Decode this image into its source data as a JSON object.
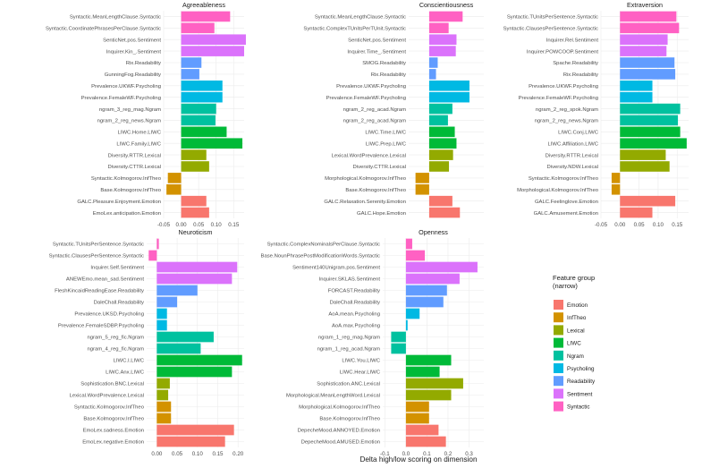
{
  "xlabel": "Delta high/low scoring on dimension",
  "legend": {
    "title": "Feature group\n(narrow)",
    "items": [
      {
        "name": "Emotion",
        "color": "#F8766D"
      },
      {
        "name": "InfTheo",
        "color": "#D39200"
      },
      {
        "name": "Lexical",
        "color": "#93AA00"
      },
      {
        "name": "LIWC",
        "color": "#00BA38"
      },
      {
        "name": "Ngram",
        "color": "#00C19F"
      },
      {
        "name": "Psycholing",
        "color": "#00B9E3"
      },
      {
        "name": "Readability",
        "color": "#619CFF"
      },
      {
        "name": "Sentiment",
        "color": "#DB72FB"
      },
      {
        "name": "Syntactic",
        "color": "#FF61C3"
      }
    ]
  },
  "chart_data": [
    {
      "type": "bar",
      "orientation": "horizontal",
      "title": "Agreeableness",
      "xlim": [
        -0.05,
        0.18
      ],
      "xticks": [
        "-0.05",
        "0.00",
        "0.05",
        "0.10",
        "0.15"
      ],
      "xtick_values": [
        -0.05,
        0.0,
        0.05,
        0.1,
        0.15
      ],
      "bars": [
        {
          "label": "Syntactic.MeanLengthClause.Syntactic",
          "value": 0.14,
          "group": "Syntactic"
        },
        {
          "label": "Syntactic.CoordinatePhrasesPerClause.Syntactic",
          "value": 0.095,
          "group": "Syntactic"
        },
        {
          "label": "SenticNet.pos.Sentiment",
          "value": 0.185,
          "group": "Sentiment"
        },
        {
          "label": "Inquirer.Kin_.Sentiment",
          "value": 0.18,
          "group": "Sentiment"
        },
        {
          "label": "Rix.Readability",
          "value": 0.058,
          "group": "Readability"
        },
        {
          "label": "GunningFog.Readability",
          "value": 0.052,
          "group": "Readability"
        },
        {
          "label": "Prevalence.UKWF.Psycholing",
          "value": 0.118,
          "group": "Psycholing"
        },
        {
          "label": "Prevalence.FemaleWF.Psycholing",
          "value": 0.118,
          "group": "Psycholing"
        },
        {
          "label": "ngram_3_reg_mag.Ngram",
          "value": 0.1,
          "group": "Ngram"
        },
        {
          "label": "ngram_2_reg_news.Ngram",
          "value": 0.098,
          "group": "Ngram"
        },
        {
          "label": "LIWC.Home.LIWC",
          "value": 0.13,
          "group": "LIWC"
        },
        {
          "label": "LIWC.Family.LIWC",
          "value": 0.175,
          "group": "LIWC"
        },
        {
          "label": "Diversity.RTTR.Lexical",
          "value": 0.072,
          "group": "Lexical"
        },
        {
          "label": "Diversity.CTTR.Lexical",
          "value": 0.08,
          "group": "Lexical"
        },
        {
          "label": "Syntactic.Kolmogorov.InfTheo",
          "value": -0.038,
          "group": "InfTheo"
        },
        {
          "label": "Base.Kolmogorov.InfTheo",
          "value": -0.042,
          "group": "InfTheo"
        },
        {
          "label": "GALC.Pleasure.Enjoyment.Emotion",
          "value": 0.072,
          "group": "Emotion"
        },
        {
          "label": "EmoLex.anticipation.Emotion",
          "value": 0.08,
          "group": "Emotion"
        }
      ]
    },
    {
      "type": "bar",
      "orientation": "horizontal",
      "title": "Conscientiousness",
      "xlim": [
        -0.06,
        0.16
      ],
      "xticks": [],
      "xtick_values": [],
      "bars": [
        {
          "label": "Syntactic.MeanLengthClause.Syntactic",
          "value": 0.098,
          "group": "Syntactic"
        },
        {
          "label": "Syntactic.ComplexTUnitsPerTUnit.Syntactic",
          "value": 0.057,
          "group": "Syntactic"
        },
        {
          "label": "SenticNet.pos.Sentiment",
          "value": 0.08,
          "group": "Sentiment"
        },
        {
          "label": "Inquirer.Time_.Sentiment",
          "value": 0.078,
          "group": "Sentiment"
        },
        {
          "label": "SMOG.Readability",
          "value": 0.025,
          "group": "Readability"
        },
        {
          "label": "Rix.Readability",
          "value": 0.02,
          "group": "Readability"
        },
        {
          "label": "Prevalence.UKWF.Psycholing",
          "value": 0.118,
          "group": "Psycholing"
        },
        {
          "label": "Prevalence.FemaleWF.Psycholing",
          "value": 0.118,
          "group": "Psycholing"
        },
        {
          "label": "ngram_2_reg_acad.Ngram",
          "value": 0.068,
          "group": "Ngram"
        },
        {
          "label": "ngram_2_reg_acad.Ngram",
          "value": 0.055,
          "group": "Ngram"
        },
        {
          "label": "LIWC.Time.LIWC",
          "value": 0.075,
          "group": "LIWC"
        },
        {
          "label": "LIWC.Prep.LIWC",
          "value": 0.08,
          "group": "LIWC"
        },
        {
          "label": "Lexical.WordPrevalence.Lexical",
          "value": 0.07,
          "group": "Lexical"
        },
        {
          "label": "Diversity.CTTR.Lexical",
          "value": 0.058,
          "group": "Lexical"
        },
        {
          "label": "Morphological.Kolmogorov.InfTheo",
          "value": -0.04,
          "group": "InfTheo"
        },
        {
          "label": "Base.Kolmogorov.InfTheo",
          "value": -0.04,
          "group": "InfTheo"
        },
        {
          "label": "GALC.Relaxation.Serenity.Emotion",
          "value": 0.068,
          "group": "Emotion"
        },
        {
          "label": "GALC.Hope.Emotion",
          "value": 0.09,
          "group": "Emotion"
        }
      ]
    },
    {
      "type": "bar",
      "orientation": "horizontal",
      "title": "Extraversion",
      "xlim": [
        -0.05,
        0.18
      ],
      "xticks": [
        "-0.05",
        "0.00",
        "0.05",
        "0.10",
        "0.15"
      ],
      "xtick_values": [
        -0.05,
        0.0,
        0.05,
        0.1,
        0.15
      ],
      "bars": [
        {
          "label": "Syntactic.TUnitsPerSentence.Syntactic",
          "value": 0.148,
          "group": "Syntactic"
        },
        {
          "label": "Syntactic.ClausesPerSentence.Syntactic",
          "value": 0.155,
          "group": "Syntactic"
        },
        {
          "label": "Inquirer.Rel.Sentiment",
          "value": 0.125,
          "group": "Sentiment"
        },
        {
          "label": "Inquirer.POWCOOP.Sentiment",
          "value": 0.122,
          "group": "Sentiment"
        },
        {
          "label": "Spache.Readability",
          "value": 0.143,
          "group": "Readability"
        },
        {
          "label": "Rix.Readability",
          "value": 0.145,
          "group": "Readability"
        },
        {
          "label": "Prevalence.UKWF.Psycholing",
          "value": 0.085,
          "group": "Psycholing"
        },
        {
          "label": "Prevalence.FemaleWF.Psycholing",
          "value": 0.085,
          "group": "Psycholing"
        },
        {
          "label": "ngram_2_reg_spok.Ngram",
          "value": 0.158,
          "group": "Ngram"
        },
        {
          "label": "ngram_2_reg_news.Ngram",
          "value": 0.152,
          "group": "Ngram"
        },
        {
          "label": "LIWC.Conj.LIWC",
          "value": 0.158,
          "group": "LIWC"
        },
        {
          "label": "LIWC.Affiliation.LIWC",
          "value": 0.175,
          "group": "LIWC"
        },
        {
          "label": "Diversity.RTTR.Lexical",
          "value": 0.12,
          "group": "Lexical"
        },
        {
          "label": "Diversity.NDW.Lexical",
          "value": 0.13,
          "group": "Lexical"
        },
        {
          "label": "Syntactic.Kolmogorov.InfTheo",
          "value": -0.022,
          "group": "InfTheo"
        },
        {
          "label": "Morphological.Kolmogorov.InfTheo",
          "value": -0.022,
          "group": "InfTheo"
        },
        {
          "label": "GALC.Feelinglove.Emotion",
          "value": 0.145,
          "group": "Emotion"
        },
        {
          "label": "GALC.Amusement.Emotion",
          "value": 0.085,
          "group": "Emotion"
        }
      ]
    },
    {
      "type": "bar",
      "orientation": "horizontal",
      "title": "Neuroticism",
      "xlim": [
        -0.025,
        0.215
      ],
      "xticks": [
        "0.00",
        "0.05",
        "0.10",
        "0.15",
        "0.20"
      ],
      "xtick_values": [
        0.0,
        0.05,
        0.1,
        0.15,
        0.2
      ],
      "bars": [
        {
          "label": "Syntactic.TUnitsPerSentence.Syntactic",
          "value": 0.005,
          "group": "Syntactic"
        },
        {
          "label": "Syntactic.ClausesPerSentence.Syntactic",
          "value": -0.02,
          "group": "Syntactic"
        },
        {
          "label": "Inquirer.Self.Sentiment",
          "value": 0.198,
          "group": "Sentiment"
        },
        {
          "label": "ANEWEmo.mean_sad.Sentiment",
          "value": 0.185,
          "group": "Sentiment"
        },
        {
          "label": "FleshKincaidReadingEase.Readability",
          "value": 0.1,
          "group": "Readability"
        },
        {
          "label": "DaleChall.Readability",
          "value": 0.05,
          "group": "Readability"
        },
        {
          "label": "Prevalence.UKSD.Psycholing",
          "value": 0.025,
          "group": "Psycholing"
        },
        {
          "label": "Prevalence.FemaleSDBP.Psycholing",
          "value": 0.025,
          "group": "Psycholing"
        },
        {
          "label": "ngram_5_reg_fic.Ngram",
          "value": 0.14,
          "group": "Ngram"
        },
        {
          "label": "ngram_4_reg_fic.Ngram",
          "value": 0.108,
          "group": "Ngram"
        },
        {
          "label": "LIWC.I.LIWC",
          "value": 0.21,
          "group": "LIWC"
        },
        {
          "label": "LIWC.Anx.LIWC",
          "value": 0.185,
          "group": "LIWC"
        },
        {
          "label": "Sophistication.BNC.Lexical",
          "value": 0.032,
          "group": "Lexical"
        },
        {
          "label": "Lexical.WordPrevalence.Lexical",
          "value": 0.028,
          "group": "Lexical"
        },
        {
          "label": "Syntactic.Kolmogorov.InfTheo",
          "value": 0.035,
          "group": "InfTheo"
        },
        {
          "label": "Base.Kolmogorov.InfTheo",
          "value": 0.035,
          "group": "InfTheo"
        },
        {
          "label": "EmoLex.sadness.Emotion",
          "value": 0.19,
          "group": "Emotion"
        },
        {
          "label": "EmoLex.negative.Emotion",
          "value": 0.168,
          "group": "Emotion"
        }
      ]
    },
    {
      "type": "bar",
      "orientation": "horizontal",
      "title": "Openness",
      "xlim": [
        -0.11,
        0.37
      ],
      "xticks": [
        "-0.1",
        "0.0",
        "0.1",
        "0.2",
        "0.3"
      ],
      "xtick_values": [
        -0.1,
        0.0,
        0.1,
        0.2,
        0.3
      ],
      "bars": [
        {
          "label": "Syntactic.ComplexNominalsPerClause.Syntactic",
          "value": 0.03,
          "group": "Syntactic"
        },
        {
          "label": "Base.NounPhrasePostModificationWords.Syntactic",
          "value": 0.09,
          "group": "Syntactic"
        },
        {
          "label": "Sentiment140Unigram.pos.Sentiment",
          "value": 0.34,
          "group": "Sentiment"
        },
        {
          "label": "Inquirer.SKLAS.Sentiment",
          "value": 0.255,
          "group": "Sentiment"
        },
        {
          "label": "FORCAST.Readability",
          "value": 0.195,
          "group": "Readability"
        },
        {
          "label": "DaleChall.Readability",
          "value": 0.178,
          "group": "Readability"
        },
        {
          "label": "AoA.mean.Psycholing",
          "value": 0.065,
          "group": "Psycholing"
        },
        {
          "label": "AoA.max.Psycholing",
          "value": 0.008,
          "group": "Psycholing"
        },
        {
          "label": "ngram_1_reg_mag.Ngram",
          "value": -0.07,
          "group": "Ngram"
        },
        {
          "label": "ngram_1_reg_acad.Ngram",
          "value": -0.07,
          "group": "Ngram"
        },
        {
          "label": "LIWC.You.LIWC",
          "value": 0.215,
          "group": "LIWC"
        },
        {
          "label": "LIWC.Hear.LIWC",
          "value": 0.16,
          "group": "LIWC"
        },
        {
          "label": "Sophistication.ANC.Lexical",
          "value": 0.272,
          "group": "Lexical"
        },
        {
          "label": "Morphological.MeanLengthWord.Lexical",
          "value": 0.215,
          "group": "Lexical"
        },
        {
          "label": "Morphological.Kolmogorov.InfTheo",
          "value": 0.11,
          "group": "InfTheo"
        },
        {
          "label": "Base.Kolmogorov.InfTheo",
          "value": 0.11,
          "group": "InfTheo"
        },
        {
          "label": "DepecheMood.ANNOYED.Emotion",
          "value": 0.155,
          "group": "Emotion"
        },
        {
          "label": "DepecheMood.AMUSED.Emotion",
          "value": 0.19,
          "group": "Emotion"
        }
      ]
    }
  ]
}
